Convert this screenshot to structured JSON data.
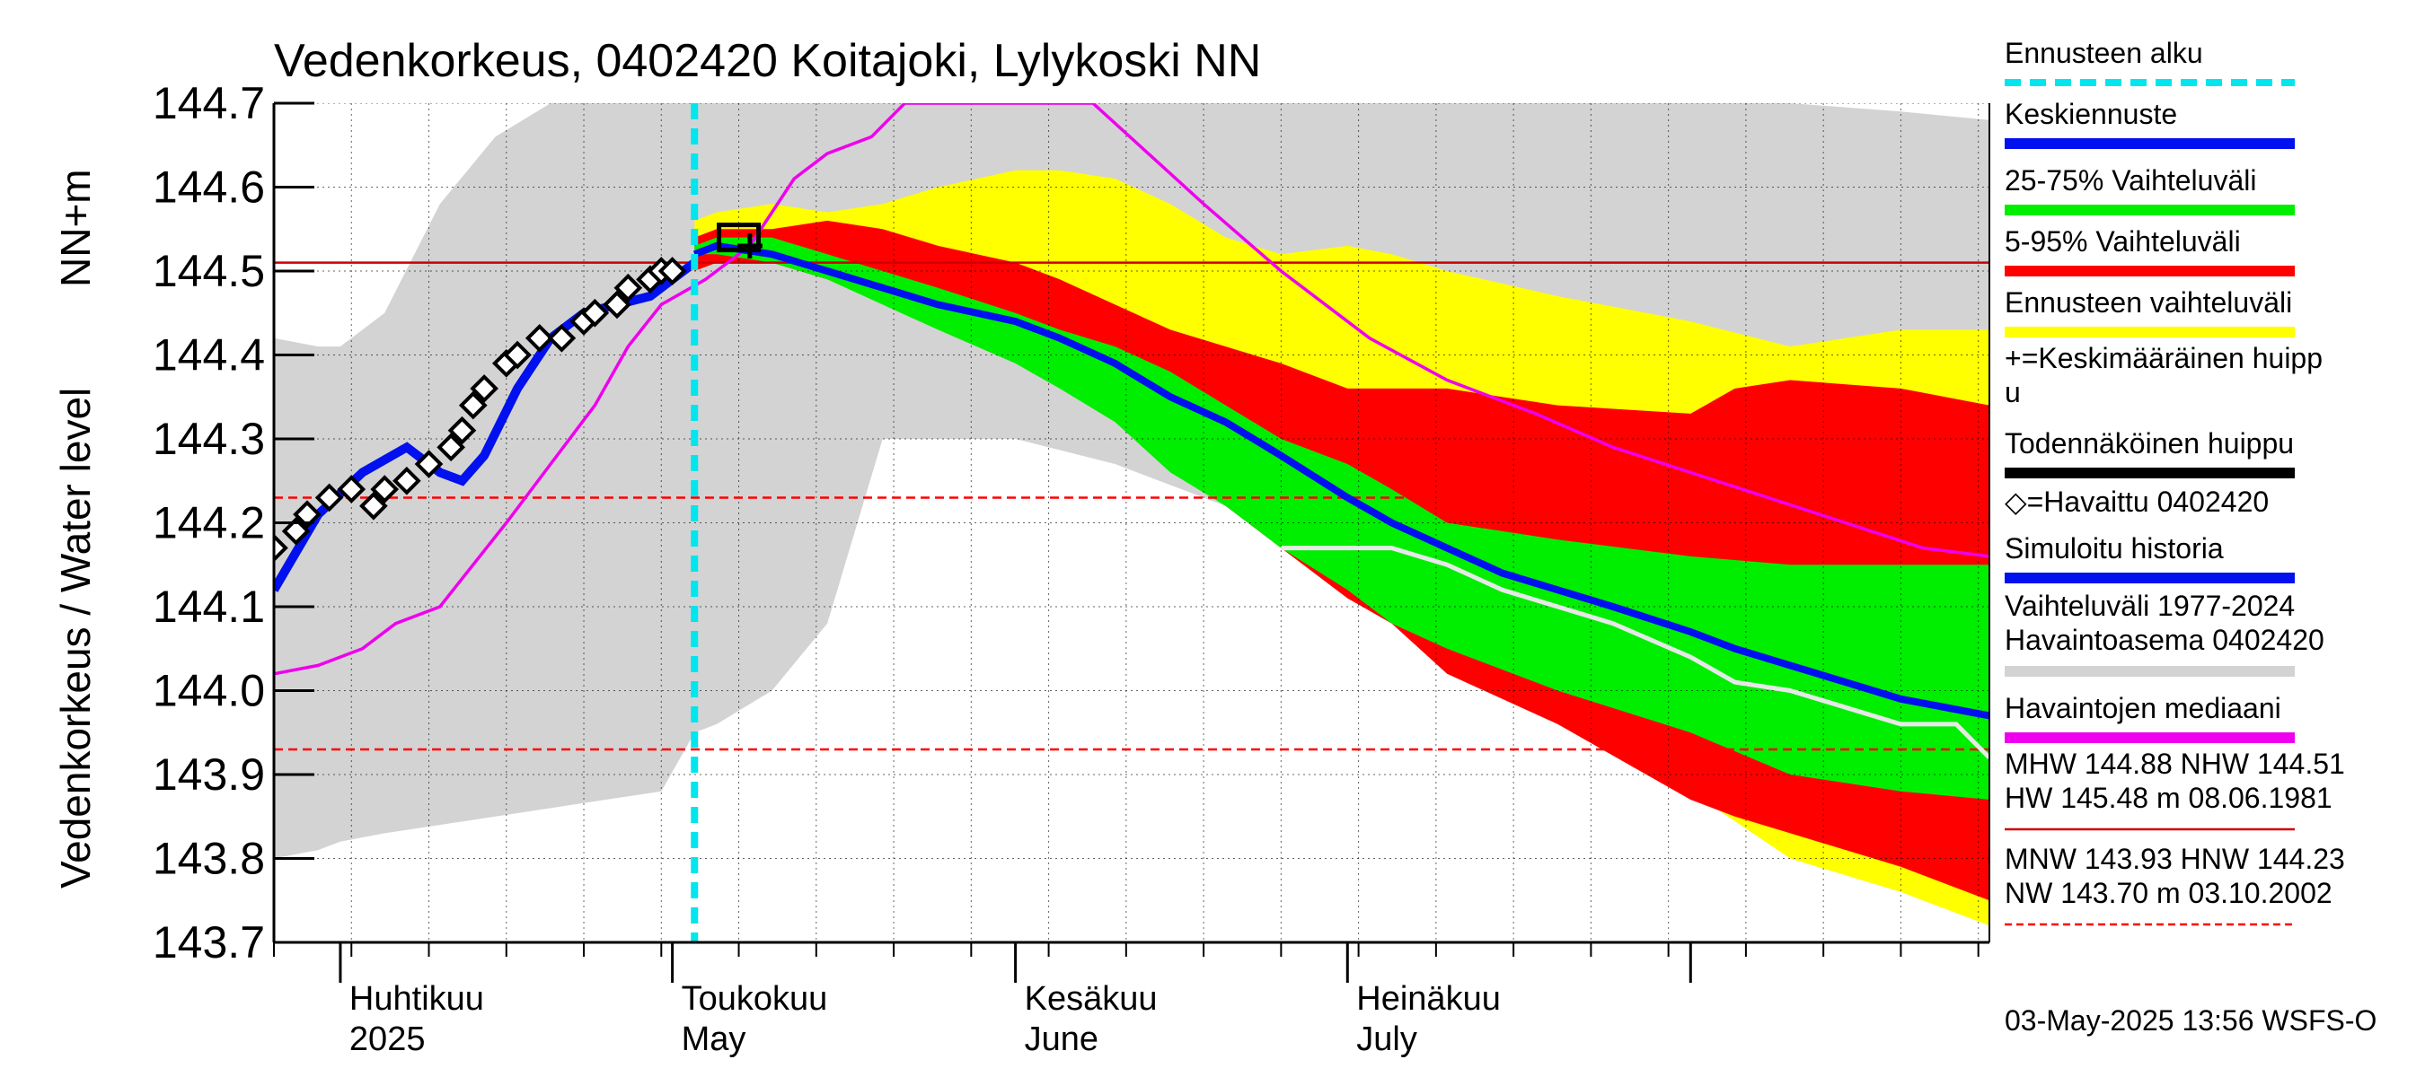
{
  "chart_data": {
    "type": "line",
    "title": "Vedenkorkeus, 0402420 Koitajoki, Lylykoski NN",
    "ylabel_left": "Vedenkorkeus / Water level",
    "ylabel_unit": "NN+m",
    "ylim": [
      143.7,
      144.7
    ],
    "y_ticks": [
      "143.7",
      "143.8",
      "143.9",
      "144.0",
      "144.1",
      "144.2",
      "144.3",
      "144.4",
      "144.5",
      "144.6",
      "144.7"
    ],
    "x_start": "2025-03-26",
    "x_end": "2025-08-28",
    "months": [
      {
        "date": "2025-04-01",
        "fi": "Huhtikuu",
        "en": "2025"
      },
      {
        "date": "2025-05-01",
        "fi": "Toukokuu",
        "en": "May"
      },
      {
        "date": "2025-06-01",
        "fi": "Kesäkuu",
        "en": "June"
      },
      {
        "date": "2025-07-01",
        "fi": "Heinäkuu",
        "en": "July"
      },
      {
        "date": "2025-08-01",
        "fi": "",
        "en": ""
      }
    ],
    "forecast_start": "2025-05-03",
    "grid": true,
    "ref_lines": [
      {
        "name": "NHW",
        "value": 144.51,
        "color": "#cc0000",
        "style": "solid"
      },
      {
        "name": "HNW",
        "value": 144.23,
        "color": "#ff0000",
        "style": "dashed"
      },
      {
        "name": "MNW",
        "value": 143.93,
        "color": "#ff0000",
        "style": "dashed"
      }
    ],
    "colors": {
      "forecast_start": "#00e5ee",
      "mean": "#0010ee",
      "band_25_75": "#00ee00",
      "band_5_95": "#ff0000",
      "band_forecast": "#ffff00",
      "historical_range": "#d3d3d3",
      "median": "#ee00ee",
      "observed": "#000000",
      "simulated": "#0010ee",
      "white_line": "#e8e8e8"
    },
    "historical_range": {
      "x": [
        "2025-03-26",
        "2025-03-30",
        "2025-04-01",
        "2025-04-05",
        "2025-04-10",
        "2025-04-15",
        "2025-04-20",
        "2025-04-25",
        "2025-04-30",
        "2025-05-03",
        "2025-05-05",
        "2025-05-10",
        "2025-05-15",
        "2025-05-20",
        "2025-05-25",
        "2025-06-01",
        "2025-06-10",
        "2025-06-20",
        "2025-07-01",
        "2025-07-10",
        "2025-07-20",
        "2025-08-01",
        "2025-08-10",
        "2025-08-20",
        "2025-08-28"
      ],
      "upper": [
        144.42,
        144.41,
        144.41,
        144.45,
        144.58,
        144.66,
        144.7,
        144.7,
        144.7,
        144.7,
        144.7,
        144.7,
        144.7,
        144.7,
        144.7,
        144.7,
        144.7,
        144.7,
        144.7,
        144.7,
        144.7,
        144.7,
        144.7,
        144.69,
        144.68
      ],
      "lower": [
        143.8,
        143.81,
        143.82,
        143.83,
        143.84,
        143.85,
        143.86,
        143.87,
        143.88,
        143.95,
        143.96,
        144.0,
        144.08,
        144.3,
        144.3,
        144.3,
        144.27,
        144.22,
        144.18,
        144.12,
        144.05,
        143.95,
        143.9,
        143.83,
        143.78
      ]
    },
    "band_forecast": {
      "x": [
        "2025-05-03",
        "2025-05-05",
        "2025-05-10",
        "2025-05-15",
        "2025-05-20",
        "2025-05-25",
        "2025-06-01",
        "2025-06-05",
        "2025-06-10",
        "2025-06-15",
        "2025-06-20",
        "2025-06-25",
        "2025-07-01",
        "2025-07-05",
        "2025-07-10",
        "2025-07-20",
        "2025-08-01",
        "2025-08-10",
        "2025-08-20",
        "2025-08-28"
      ],
      "upper": [
        144.56,
        144.57,
        144.58,
        144.57,
        144.58,
        144.6,
        144.62,
        144.62,
        144.61,
        144.58,
        144.54,
        144.52,
        144.53,
        144.52,
        144.5,
        144.47,
        144.44,
        144.41,
        144.43,
        144.43
      ],
      "lower": [
        144.5,
        144.51,
        144.51,
        144.5,
        144.48,
        144.46,
        144.43,
        144.4,
        144.37,
        144.3,
        144.25,
        144.2,
        144.14,
        144.1,
        144.05,
        143.97,
        143.88,
        143.8,
        143.76,
        143.72
      ]
    },
    "band_5_95": {
      "x": [
        "2025-05-03",
        "2025-05-05",
        "2025-05-10",
        "2025-05-15",
        "2025-05-20",
        "2025-05-25",
        "2025-06-01",
        "2025-06-05",
        "2025-06-10",
        "2025-06-15",
        "2025-06-20",
        "2025-06-25",
        "2025-07-01",
        "2025-07-05",
        "2025-07-10",
        "2025-07-20",
        "2025-08-01",
        "2025-08-05",
        "2025-08-10",
        "2025-08-20",
        "2025-08-28"
      ],
      "upper": [
        144.54,
        144.55,
        144.55,
        144.56,
        144.55,
        144.53,
        144.51,
        144.49,
        144.46,
        144.43,
        144.41,
        144.39,
        144.36,
        144.36,
        144.36,
        144.34,
        144.33,
        144.36,
        144.37,
        144.36,
        144.34
      ],
      "lower": [
        144.5,
        144.51,
        144.51,
        144.49,
        144.47,
        144.44,
        144.4,
        144.37,
        144.33,
        144.27,
        144.22,
        144.17,
        144.11,
        144.08,
        144.02,
        143.96,
        143.87,
        143.85,
        143.83,
        143.79,
        143.75
      ]
    },
    "band_25_75": {
      "x": [
        "2025-05-03",
        "2025-05-05",
        "2025-05-10",
        "2025-05-15",
        "2025-05-20",
        "2025-05-25",
        "2025-06-01",
        "2025-06-05",
        "2025-06-10",
        "2025-06-15",
        "2025-06-20",
        "2025-06-25",
        "2025-07-01",
        "2025-07-05",
        "2025-07-10",
        "2025-07-20",
        "2025-08-01",
        "2025-08-10",
        "2025-08-20",
        "2025-08-28"
      ],
      "upper": [
        144.53,
        144.54,
        144.54,
        144.52,
        144.5,
        144.48,
        144.45,
        144.43,
        144.41,
        144.38,
        144.34,
        144.3,
        144.27,
        144.24,
        144.2,
        144.18,
        144.16,
        144.15,
        144.15,
        144.15
      ],
      "lower": [
        144.52,
        144.52,
        144.51,
        144.49,
        144.46,
        144.43,
        144.39,
        144.36,
        144.32,
        144.26,
        144.22,
        144.17,
        144.12,
        144.08,
        144.05,
        144.0,
        143.95,
        143.9,
        143.88,
        143.87
      ]
    },
    "mean_forecast": {
      "x": [
        "2025-05-03",
        "2025-05-05",
        "2025-05-10",
        "2025-05-15",
        "2025-05-20",
        "2025-05-25",
        "2025-06-01",
        "2025-06-05",
        "2025-06-10",
        "2025-06-15",
        "2025-06-20",
        "2025-06-25",
        "2025-07-01",
        "2025-07-05",
        "2025-07-10",
        "2025-07-15",
        "2025-07-20",
        "2025-07-25",
        "2025-08-01",
        "2025-08-05",
        "2025-08-10",
        "2025-08-15",
        "2025-08-20",
        "2025-08-28"
      ],
      "y": [
        144.52,
        144.53,
        144.52,
        144.5,
        144.48,
        144.46,
        144.44,
        144.42,
        144.39,
        144.35,
        144.32,
        144.28,
        144.23,
        144.2,
        144.17,
        144.14,
        144.12,
        144.1,
        144.07,
        144.05,
        144.03,
        144.01,
        143.99,
        143.97
      ]
    },
    "white_line": {
      "x": [
        "2025-06-25",
        "2025-06-30",
        "2025-07-05",
        "2025-07-10",
        "2025-07-15",
        "2025-07-20",
        "2025-07-25",
        "2025-08-01",
        "2025-08-05",
        "2025-08-10",
        "2025-08-15",
        "2025-08-20",
        "2025-08-25",
        "2025-08-28"
      ],
      "y": [
        144.17,
        144.17,
        144.17,
        144.15,
        144.12,
        144.1,
        144.08,
        144.04,
        144.01,
        144.0,
        143.98,
        143.96,
        143.96,
        143.92
      ]
    },
    "simulated_history": {
      "x": [
        "2025-03-26",
        "2025-03-30",
        "2025-04-03",
        "2025-04-07",
        "2025-04-10",
        "2025-04-12",
        "2025-04-14",
        "2025-04-17",
        "2025-04-20",
        "2025-04-23",
        "2025-04-26",
        "2025-04-29",
        "2025-05-01",
        "2025-05-03"
      ],
      "y": [
        144.12,
        144.21,
        144.26,
        144.29,
        144.26,
        144.25,
        144.28,
        144.36,
        144.42,
        144.45,
        144.46,
        144.47,
        144.49,
        144.51
      ]
    },
    "median": {
      "x": [
        "2025-03-26",
        "2025-03-30",
        "2025-04-03",
        "2025-04-06",
        "2025-04-10",
        "2025-04-13",
        "2025-04-16",
        "2025-04-20",
        "2025-04-24",
        "2025-04-27",
        "2025-04-30",
        "2025-05-04",
        "2025-05-08",
        "2025-05-12",
        "2025-05-15",
        "2025-05-19",
        "2025-05-22",
        "2025-06-08",
        "2025-06-13",
        "2025-06-18",
        "2025-06-25",
        "2025-07-03",
        "2025-07-10",
        "2025-07-18",
        "2025-07-25",
        "2025-08-01",
        "2025-08-08",
        "2025-08-15",
        "2025-08-22",
        "2025-08-28"
      ],
      "y": [
        144.02,
        144.03,
        144.05,
        144.08,
        144.1,
        144.15,
        144.2,
        144.27,
        144.34,
        144.41,
        144.46,
        144.49,
        144.53,
        144.61,
        144.64,
        144.66,
        144.7,
        144.7,
        144.64,
        144.58,
        144.5,
        144.42,
        144.37,
        144.33,
        144.29,
        144.26,
        144.23,
        144.2,
        144.17,
        144.16
      ]
    },
    "observed": {
      "x": [
        "2025-03-26",
        "2025-03-28",
        "2025-03-29",
        "2025-03-31",
        "2025-04-02",
        "2025-04-04",
        "2025-04-05",
        "2025-04-07",
        "2025-04-09",
        "2025-04-11",
        "2025-04-12",
        "2025-04-13",
        "2025-04-14",
        "2025-04-16",
        "2025-04-17",
        "2025-04-19",
        "2025-04-21",
        "2025-04-23",
        "2025-04-24",
        "2025-04-26",
        "2025-04-27",
        "2025-04-29",
        "2025-04-30",
        "2025-05-01"
      ],
      "y": [
        144.17,
        144.19,
        144.21,
        144.23,
        144.24,
        144.22,
        144.24,
        144.25,
        144.27,
        144.29,
        144.31,
        144.34,
        144.36,
        144.39,
        144.4,
        144.42,
        144.42,
        144.44,
        144.45,
        144.46,
        144.48,
        144.49,
        144.5,
        144.5
      ]
    },
    "probable_peak": {
      "x": "2025-05-07",
      "y": 144.54
    },
    "mean_peak": {
      "x": "2025-05-08",
      "y": 144.53
    },
    "legend": [
      {
        "label": "Ennusteen alku",
        "key": "forecast_start",
        "kind": "dashed"
      },
      {
        "label": "Keskiennuste",
        "key": "mean",
        "kind": "line"
      },
      {
        "label": "25-75% Vaihteluväli",
        "key": "band_25_75",
        "kind": "line"
      },
      {
        "label": "5-95% Vaihteluväli",
        "key": "band_5_95",
        "kind": "line"
      },
      {
        "label": "Ennusteen vaihteluväli",
        "key": "band_forecast",
        "kind": "line"
      },
      {
        "label": "+=Keskimääräinen huipp",
        "label2": "u",
        "key": "mean_peak",
        "kind": "none"
      },
      {
        "label": "Todennäköinen huippu",
        "key": "observed",
        "kind": "line"
      },
      {
        "label": "◇=Havaittu 0402420",
        "key": "observed",
        "kind": "none"
      },
      {
        "label": "Simuloitu historia",
        "key": "simulated",
        "kind": "line"
      },
      {
        "label": "Vaihteluväli 1977-2024",
        "label2": " Havaintoasema 0402420",
        "key": "historical_range",
        "kind": "line"
      },
      {
        "label": "Havaintojen mediaani",
        "key": "median",
        "kind": "line"
      },
      {
        "label": "MHW 144.88 NHW 144.51",
        "label2": "HW 145.48 m 08.06.1981",
        "key": "band_5_95",
        "kind": "thin"
      },
      {
        "label": "MNW 143.93 HNW 144.23",
        "label2": "NW 143.70 m 03.10.2002",
        "key": "band_5_95",
        "kind": "thindash"
      }
    ],
    "timestamp": "03-May-2025 13:56 WSFS-O"
  }
}
